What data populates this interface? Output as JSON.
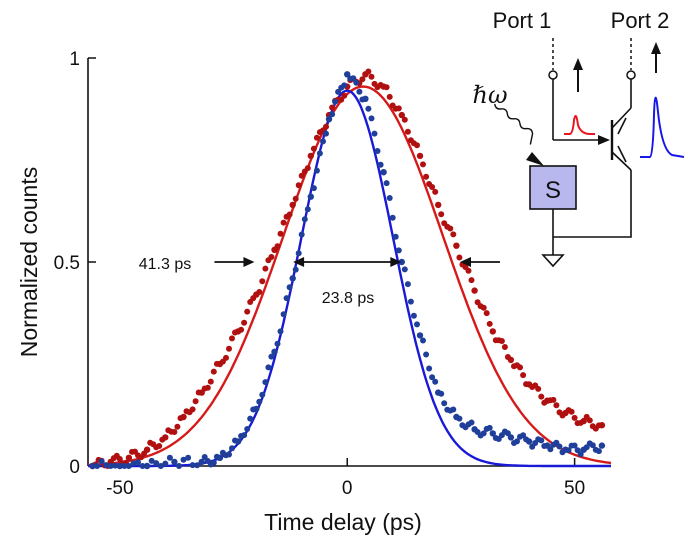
{
  "chart_data": {
    "type": "scatter",
    "xlabel": "Time delay (ps)",
    "ylabel": "Normalized counts",
    "xlim": [
      -57,
      58
    ],
    "ylim": [
      0,
      1.0
    ],
    "xticks": [
      -50,
      0,
      50
    ],
    "xtick_labels": [
      "-50",
      "0",
      "50"
    ],
    "yticks": [
      0,
      0.5,
      1
    ],
    "ytick_labels": [
      "0",
      "0.5",
      "1"
    ],
    "grid": false,
    "series": [
      {
        "color": "#b01010",
        "fit_color": "#d61a1a",
        "fit": {
          "model": "gaussian",
          "center": 3.5,
          "fwhm": 41.3,
          "amplitude": 0.93,
          "baseline": 0.0
        },
        "points": [
          [
            -56,
            0.0
          ],
          [
            -52,
            0.01
          ],
          [
            -48,
            0.02
          ],
          [
            -44,
            0.04
          ],
          [
            -40,
            0.07
          ],
          [
            -36,
            0.12
          ],
          [
            -32,
            0.18
          ],
          [
            -28,
            0.25
          ],
          [
            -24,
            0.33
          ],
          [
            -20,
            0.42
          ],
          [
            -16,
            0.53
          ],
          [
            -12,
            0.64
          ],
          [
            -8,
            0.76
          ],
          [
            -4,
            0.86
          ],
          [
            0,
            0.93
          ],
          [
            4,
            0.96
          ],
          [
            8,
            0.93
          ],
          [
            12,
            0.86
          ],
          [
            16,
            0.76
          ],
          [
            20,
            0.64
          ],
          [
            24,
            0.54
          ],
          [
            28,
            0.43
          ],
          [
            32,
            0.33
          ],
          [
            36,
            0.26
          ],
          [
            40,
            0.2
          ],
          [
            44,
            0.16
          ],
          [
            48,
            0.13
          ],
          [
            52,
            0.11
          ],
          [
            56,
            0.1
          ]
        ]
      },
      {
        "color": "#1f3f9a",
        "fit_color": "#1a1ad6",
        "fit": {
          "model": "gaussian",
          "center": 0.0,
          "fwhm": 23.8,
          "amplitude": 0.92,
          "baseline": 0.0
        },
        "points": [
          [
            -56,
            0.0
          ],
          [
            -50,
            0.0
          ],
          [
            -44,
            0.0
          ],
          [
            -38,
            0.01
          ],
          [
            -32,
            0.01
          ],
          [
            -28,
            0.02
          ],
          [
            -24,
            0.06
          ],
          [
            -20,
            0.14
          ],
          [
            -16,
            0.28
          ],
          [
            -12,
            0.46
          ],
          [
            -8,
            0.66
          ],
          [
            -4,
            0.85
          ],
          [
            0,
            0.96
          ],
          [
            4,
            0.9
          ],
          [
            8,
            0.72
          ],
          [
            12,
            0.5
          ],
          [
            16,
            0.32
          ],
          [
            20,
            0.18
          ],
          [
            24,
            0.12
          ],
          [
            28,
            0.09
          ],
          [
            32,
            0.08
          ],
          [
            36,
            0.07
          ],
          [
            40,
            0.06
          ],
          [
            44,
            0.05
          ],
          [
            48,
            0.04
          ],
          [
            52,
            0.04
          ],
          [
            56,
            0.05
          ]
        ]
      }
    ],
    "annotations": [
      {
        "text": "41.3 ps",
        "arrows_at_x": [
          -20.4,
          24.8
        ],
        "y": 0.5,
        "arrow_style": "outside-inward"
      },
      {
        "text": "23.8 ps",
        "arrows_at_x": [
          -11.9,
          11.9
        ],
        "y": 0.5,
        "arrow_style": "between-outward"
      }
    ],
    "inset": {
      "port1_label": "Port 1",
      "port2_label": "Port 2",
      "photon_label": "ℏω",
      "detector_label": "S",
      "detector_fill": "#b8b8ee",
      "pulse1_color": "#e8171f",
      "pulse2_color": "#1717e8"
    }
  }
}
